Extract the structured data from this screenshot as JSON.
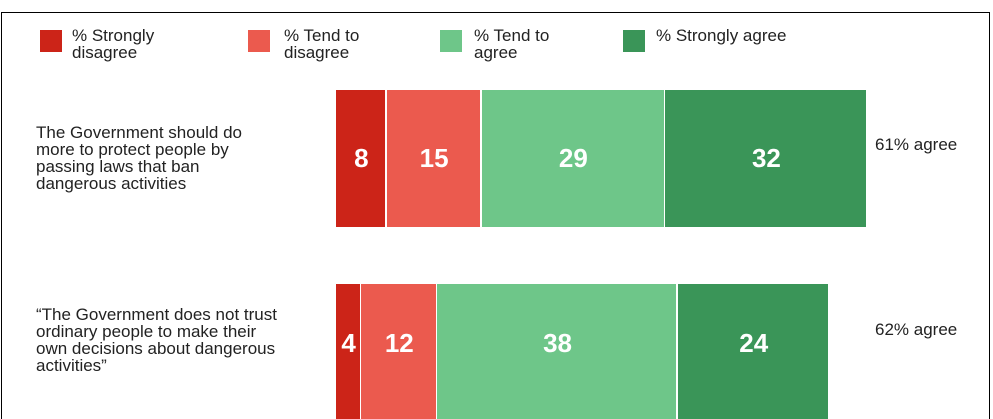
{
  "chart_data": {
    "type": "bar",
    "orientation": "horizontal",
    "stacked": true,
    "categories": [
      "The Government should do\nmore to protect people by\npassing laws that ban\ndangerous activities",
      "“The Government does not trust\nordinary people to make their\nown decisions about dangerous\nactivities”"
    ],
    "series": [
      {
        "name": "% Strongly\ndisagree",
        "color": "#cc2418",
        "values": [
          8,
          4
        ]
      },
      {
        "name": "% Tend to\ndisagree",
        "color": "#eb5a4e",
        "values": [
          15,
          12
        ]
      },
      {
        "name": "% Tend to\nagree",
        "color": "#6ec689",
        "values": [
          29,
          38
        ]
      },
      {
        "name": "% Strongly agree",
        "color": "#3a9558",
        "values": [
          32,
          24
        ]
      }
    ],
    "annotations": [
      "61% agree",
      "62% agree"
    ]
  }
}
